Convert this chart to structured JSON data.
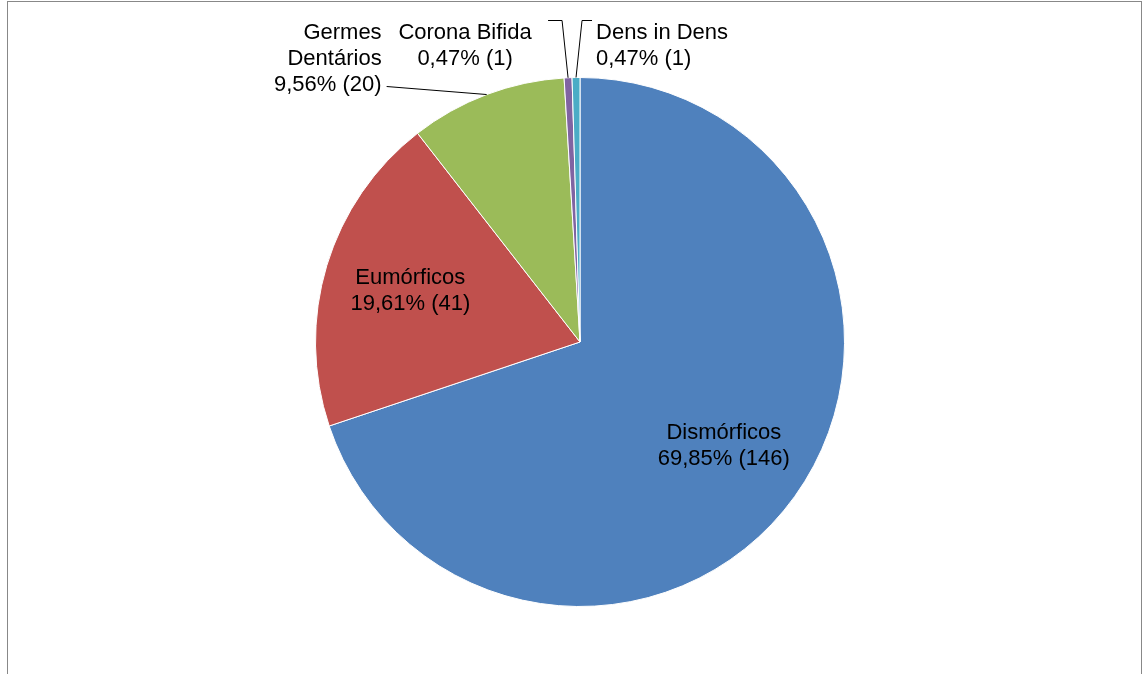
{
  "chart_data": {
    "type": "pie",
    "categories": [
      "Dismórficos",
      "Eumórficos",
      "Germes Dentários",
      "Corona Bifida",
      "Dens in Dens"
    ],
    "values": [
      146,
      41,
      20,
      1,
      1
    ],
    "value_labels": [
      "69,85% (146)",
      "19,61% (41)",
      "9,56% (20)",
      "0,47% (1)",
      "0,47% (1)"
    ],
    "colors": [
      "#4f81bd",
      "#c0504d",
      "#9bbb59",
      "#8064a2",
      "#4bacc6"
    ],
    "legend": false
  }
}
